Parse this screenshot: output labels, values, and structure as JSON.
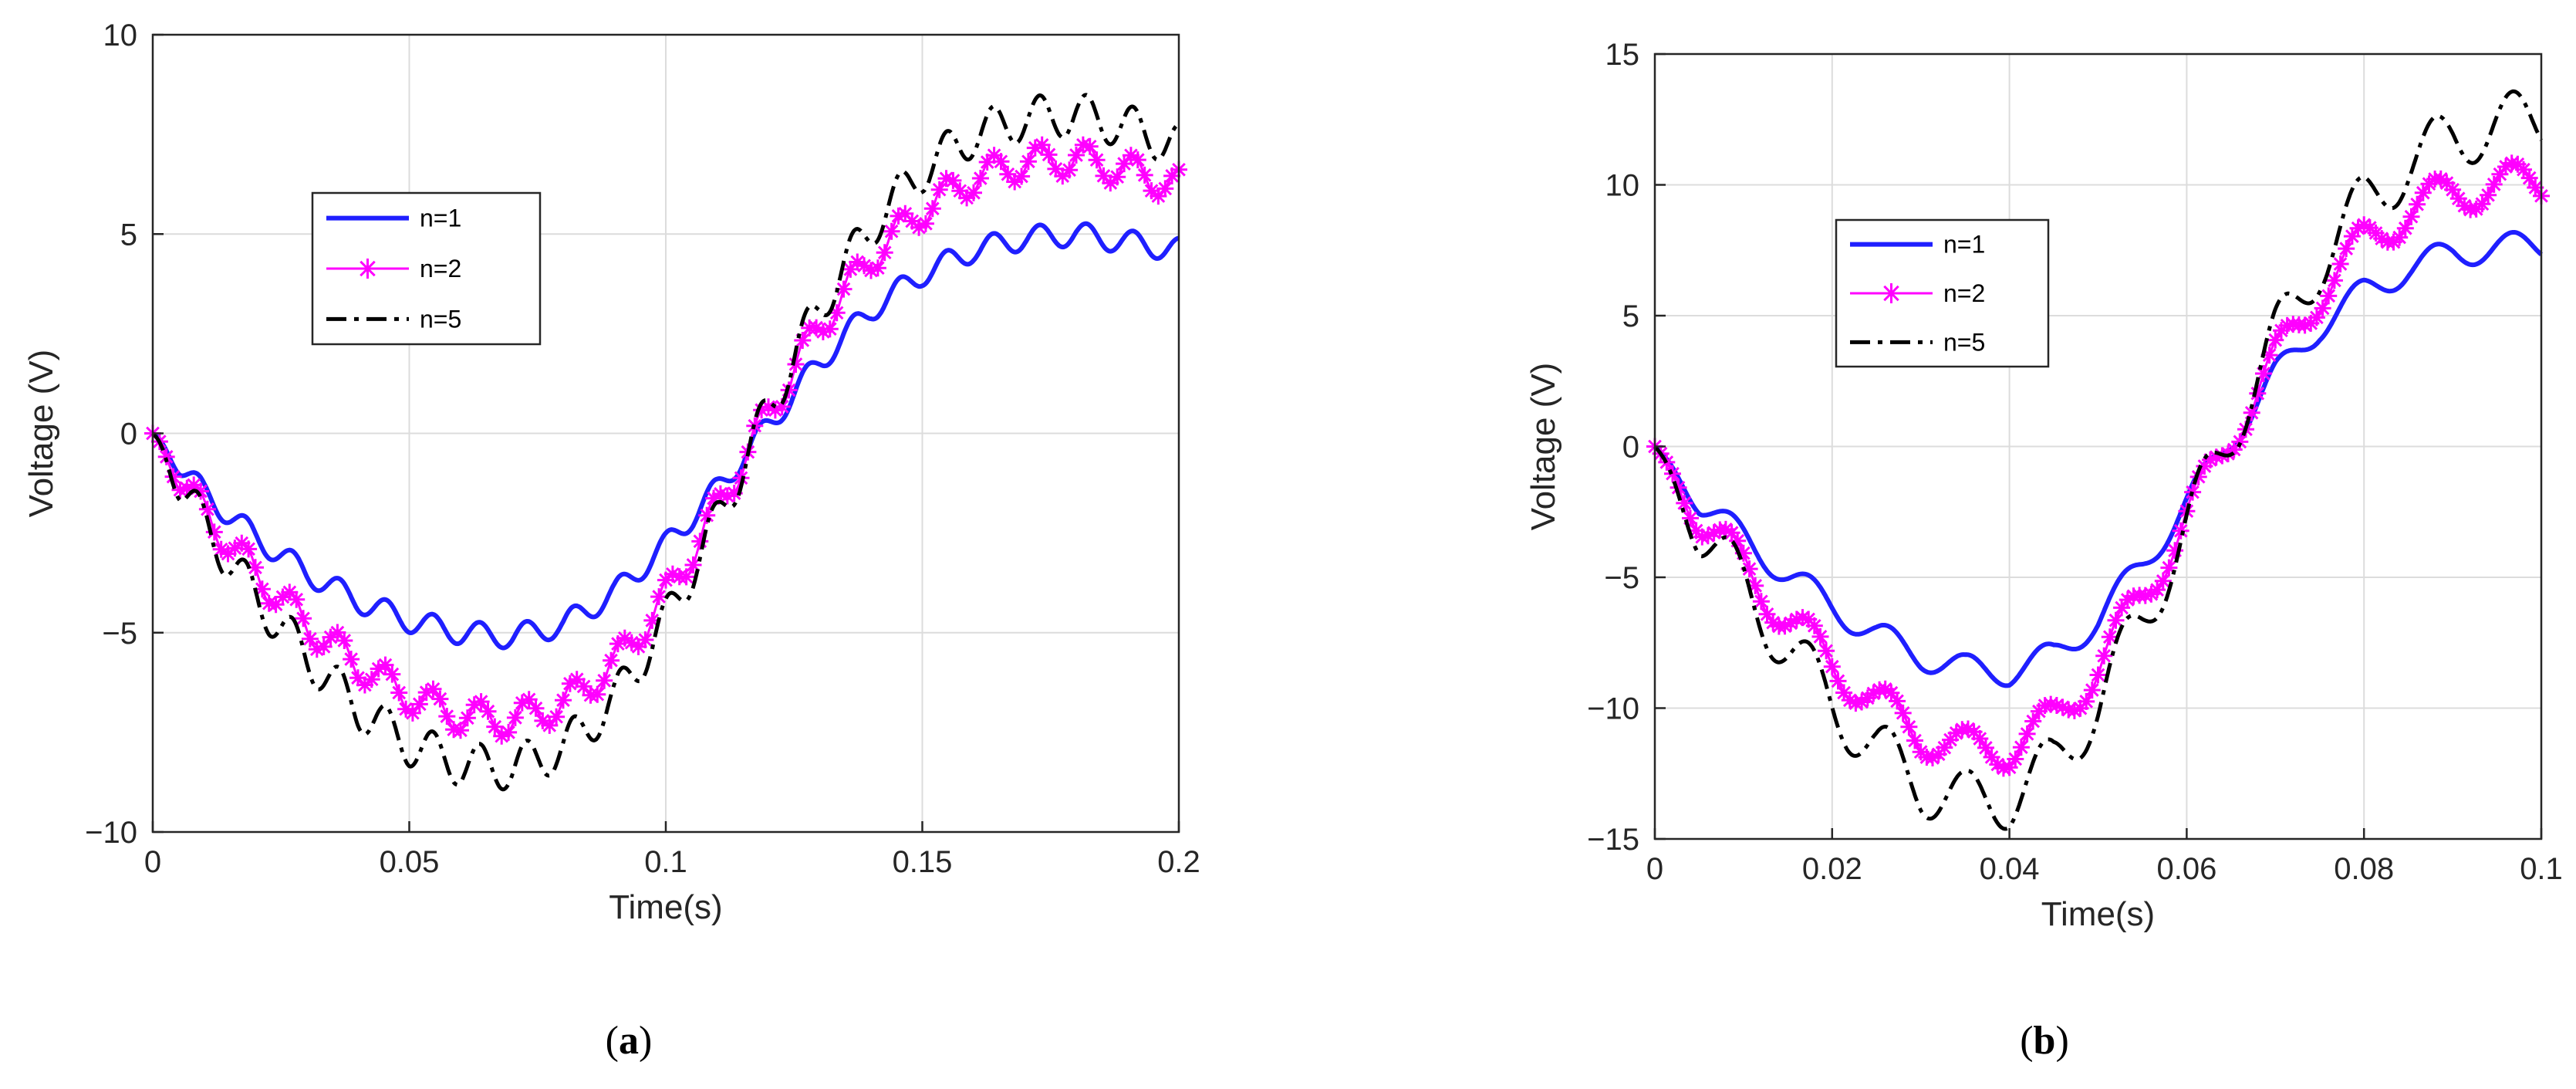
{
  "colors": {
    "n1": "#1f1fff",
    "n2": "#ff00ff",
    "n5": "#000000",
    "grid": "#dcdcdc",
    "axis": "#262626"
  },
  "chart_data": [
    {
      "type": "line",
      "caption_letter": "a",
      "xlabel": "Time(s)",
      "ylabel": "Voltage (V)",
      "xlim": [
        0,
        0.2
      ],
      "ylim": [
        -10,
        10
      ],
      "xticks": [
        0,
        0.05,
        0.1,
        0.15,
        0.2
      ],
      "xtick_labels": [
        "0",
        "0.05",
        "0.1",
        "0.15",
        "0.2"
      ],
      "yticks": [
        -10,
        -5,
        0,
        5,
        10
      ],
      "ytick_labels": [
        "−10",
        "−5",
        "0",
        "5",
        "10"
      ],
      "grid": true,
      "legend_position": "upper-left",
      "ripple_period": 0.0091,
      "series": [
        {
          "name": "n=1",
          "style": "solid",
          "amplitude": 5.1,
          "ripple": 0.3,
          "x": [
            0,
            0.01,
            0.02,
            0.03,
            0.04,
            0.05,
            0.06,
            0.07,
            0.08,
            0.09,
            0.1,
            0.11,
            0.12,
            0.13,
            0.14,
            0.15,
            0.16,
            0.17,
            0.18,
            0.19,
            0.2
          ],
          "y": [
            0,
            -1.5,
            -2.6,
            -3.5,
            -4.2,
            -4.7,
            -5.0,
            -5.1,
            -4.8,
            -4.0,
            -2.8,
            -1.4,
            0.2,
            1.8,
            3.1,
            4.0,
            4.6,
            4.9,
            5.0,
            4.8,
            4.6
          ]
        },
        {
          "name": "n=2",
          "style": "star",
          "amplitude": 7.1,
          "ripple": 0.42,
          "x": [
            0,
            0.01,
            0.02,
            0.03,
            0.04,
            0.05,
            0.06,
            0.07,
            0.08,
            0.09,
            0.1,
            0.11,
            0.12,
            0.13,
            0.14,
            0.15,
            0.16,
            0.17,
            0.18,
            0.19,
            0.2
          ],
          "y": [
            0,
            -2.0,
            -3.5,
            -4.8,
            -5.8,
            -6.6,
            -7.1,
            -7.2,
            -6.8,
            -5.8,
            -4.1,
            -1.9,
            0.5,
            2.7,
            4.4,
            5.6,
            6.4,
            6.8,
            6.9,
            6.6,
            6.2
          ]
        },
        {
          "name": "n=5",
          "style": "dashdot",
          "amplitude": 8.3,
          "ripple": 0.55,
          "x": [
            0,
            0.01,
            0.02,
            0.03,
            0.04,
            0.05,
            0.06,
            0.07,
            0.08,
            0.09,
            0.1,
            0.11,
            0.12,
            0.13,
            0.14,
            0.15,
            0.16,
            0.17,
            0.18,
            0.19,
            0.2
          ],
          "y": [
            0,
            -2.3,
            -4.1,
            -5.6,
            -6.9,
            -7.8,
            -8.3,
            -8.4,
            -7.9,
            -6.7,
            -4.7,
            -2.2,
            0.6,
            3.2,
            5.2,
            6.6,
            7.5,
            7.9,
            8.0,
            7.7,
            7.2
          ]
        }
      ]
    },
    {
      "type": "line",
      "caption_letter": "b",
      "xlabel": "Time(s)",
      "ylabel": "Voltage (V)",
      "xlim": [
        0,
        0.1
      ],
      "ylim": [
        -15,
        15
      ],
      "xticks": [
        0,
        0.02,
        0.04,
        0.06,
        0.08,
        0.1
      ],
      "xtick_labels": [
        "0",
        "0.02",
        "0.04",
        "0.06",
        "0.08",
        "0.1"
      ],
      "yticks": [
        -15,
        -10,
        -5,
        0,
        5,
        10,
        15
      ],
      "ytick_labels": [
        "−15",
        "−10",
        "−5",
        "0",
        "5",
        "10",
        "15"
      ],
      "grid": true,
      "legend_position": "upper-left",
      "ripple_period": 0.0088,
      "series": [
        {
          "name": "n=1",
          "style": "solid",
          "amplitude": 8.0,
          "ripple": 0.55,
          "x": [
            0,
            0.005,
            0.01,
            0.015,
            0.02,
            0.025,
            0.03,
            0.035,
            0.04,
            0.045,
            0.05,
            0.055,
            0.06,
            0.065,
            0.07,
            0.075,
            0.08,
            0.085,
            0.09,
            0.095,
            0.1
          ],
          "y": [
            0,
            -2.1,
            -3.5,
            -4.9,
            -6.1,
            -7.2,
            -8.0,
            -8.5,
            -8.6,
            -8.0,
            -6.6,
            -4.5,
            -2.2,
            0.3,
            2.7,
            4.6,
            5.9,
            6.8,
            7.4,
            7.6,
            7.7
          ]
        },
        {
          "name": "n=2",
          "style": "star",
          "amplitude": 10.8,
          "ripple": 0.8,
          "x": [
            0,
            0.005,
            0.01,
            0.015,
            0.02,
            0.025,
            0.03,
            0.035,
            0.04,
            0.045,
            0.05,
            0.055,
            0.06,
            0.065,
            0.07,
            0.075,
            0.08,
            0.085,
            0.09,
            0.095,
            0.1
          ],
          "y": [
            0,
            -2.7,
            -4.6,
            -6.6,
            -8.3,
            -9.8,
            -11.0,
            -11.6,
            -11.5,
            -10.5,
            -8.4,
            -5.7,
            -2.8,
            0.4,
            3.3,
            5.9,
            7.8,
            9.0,
            9.7,
            10.0,
            10.1
          ]
        },
        {
          "name": "n=5",
          "style": "dashdot",
          "amplitude": 12.5,
          "ripple": 1.2,
          "x": [
            0,
            0.005,
            0.01,
            0.015,
            0.02,
            0.025,
            0.03,
            0.035,
            0.04,
            0.045,
            0.05,
            0.055,
            0.06,
            0.065,
            0.07,
            0.075,
            0.08,
            0.085,
            0.09,
            0.095,
            0.1
          ],
          "y": [
            0,
            -3.1,
            -5.4,
            -7.7,
            -9.8,
            -11.6,
            -12.9,
            -13.6,
            -13.4,
            -12.2,
            -9.8,
            -6.6,
            -3.1,
            0.6,
            4.1,
            7.1,
            9.3,
            10.8,
            11.8,
            12.3,
            12.5
          ]
        }
      ]
    }
  ]
}
